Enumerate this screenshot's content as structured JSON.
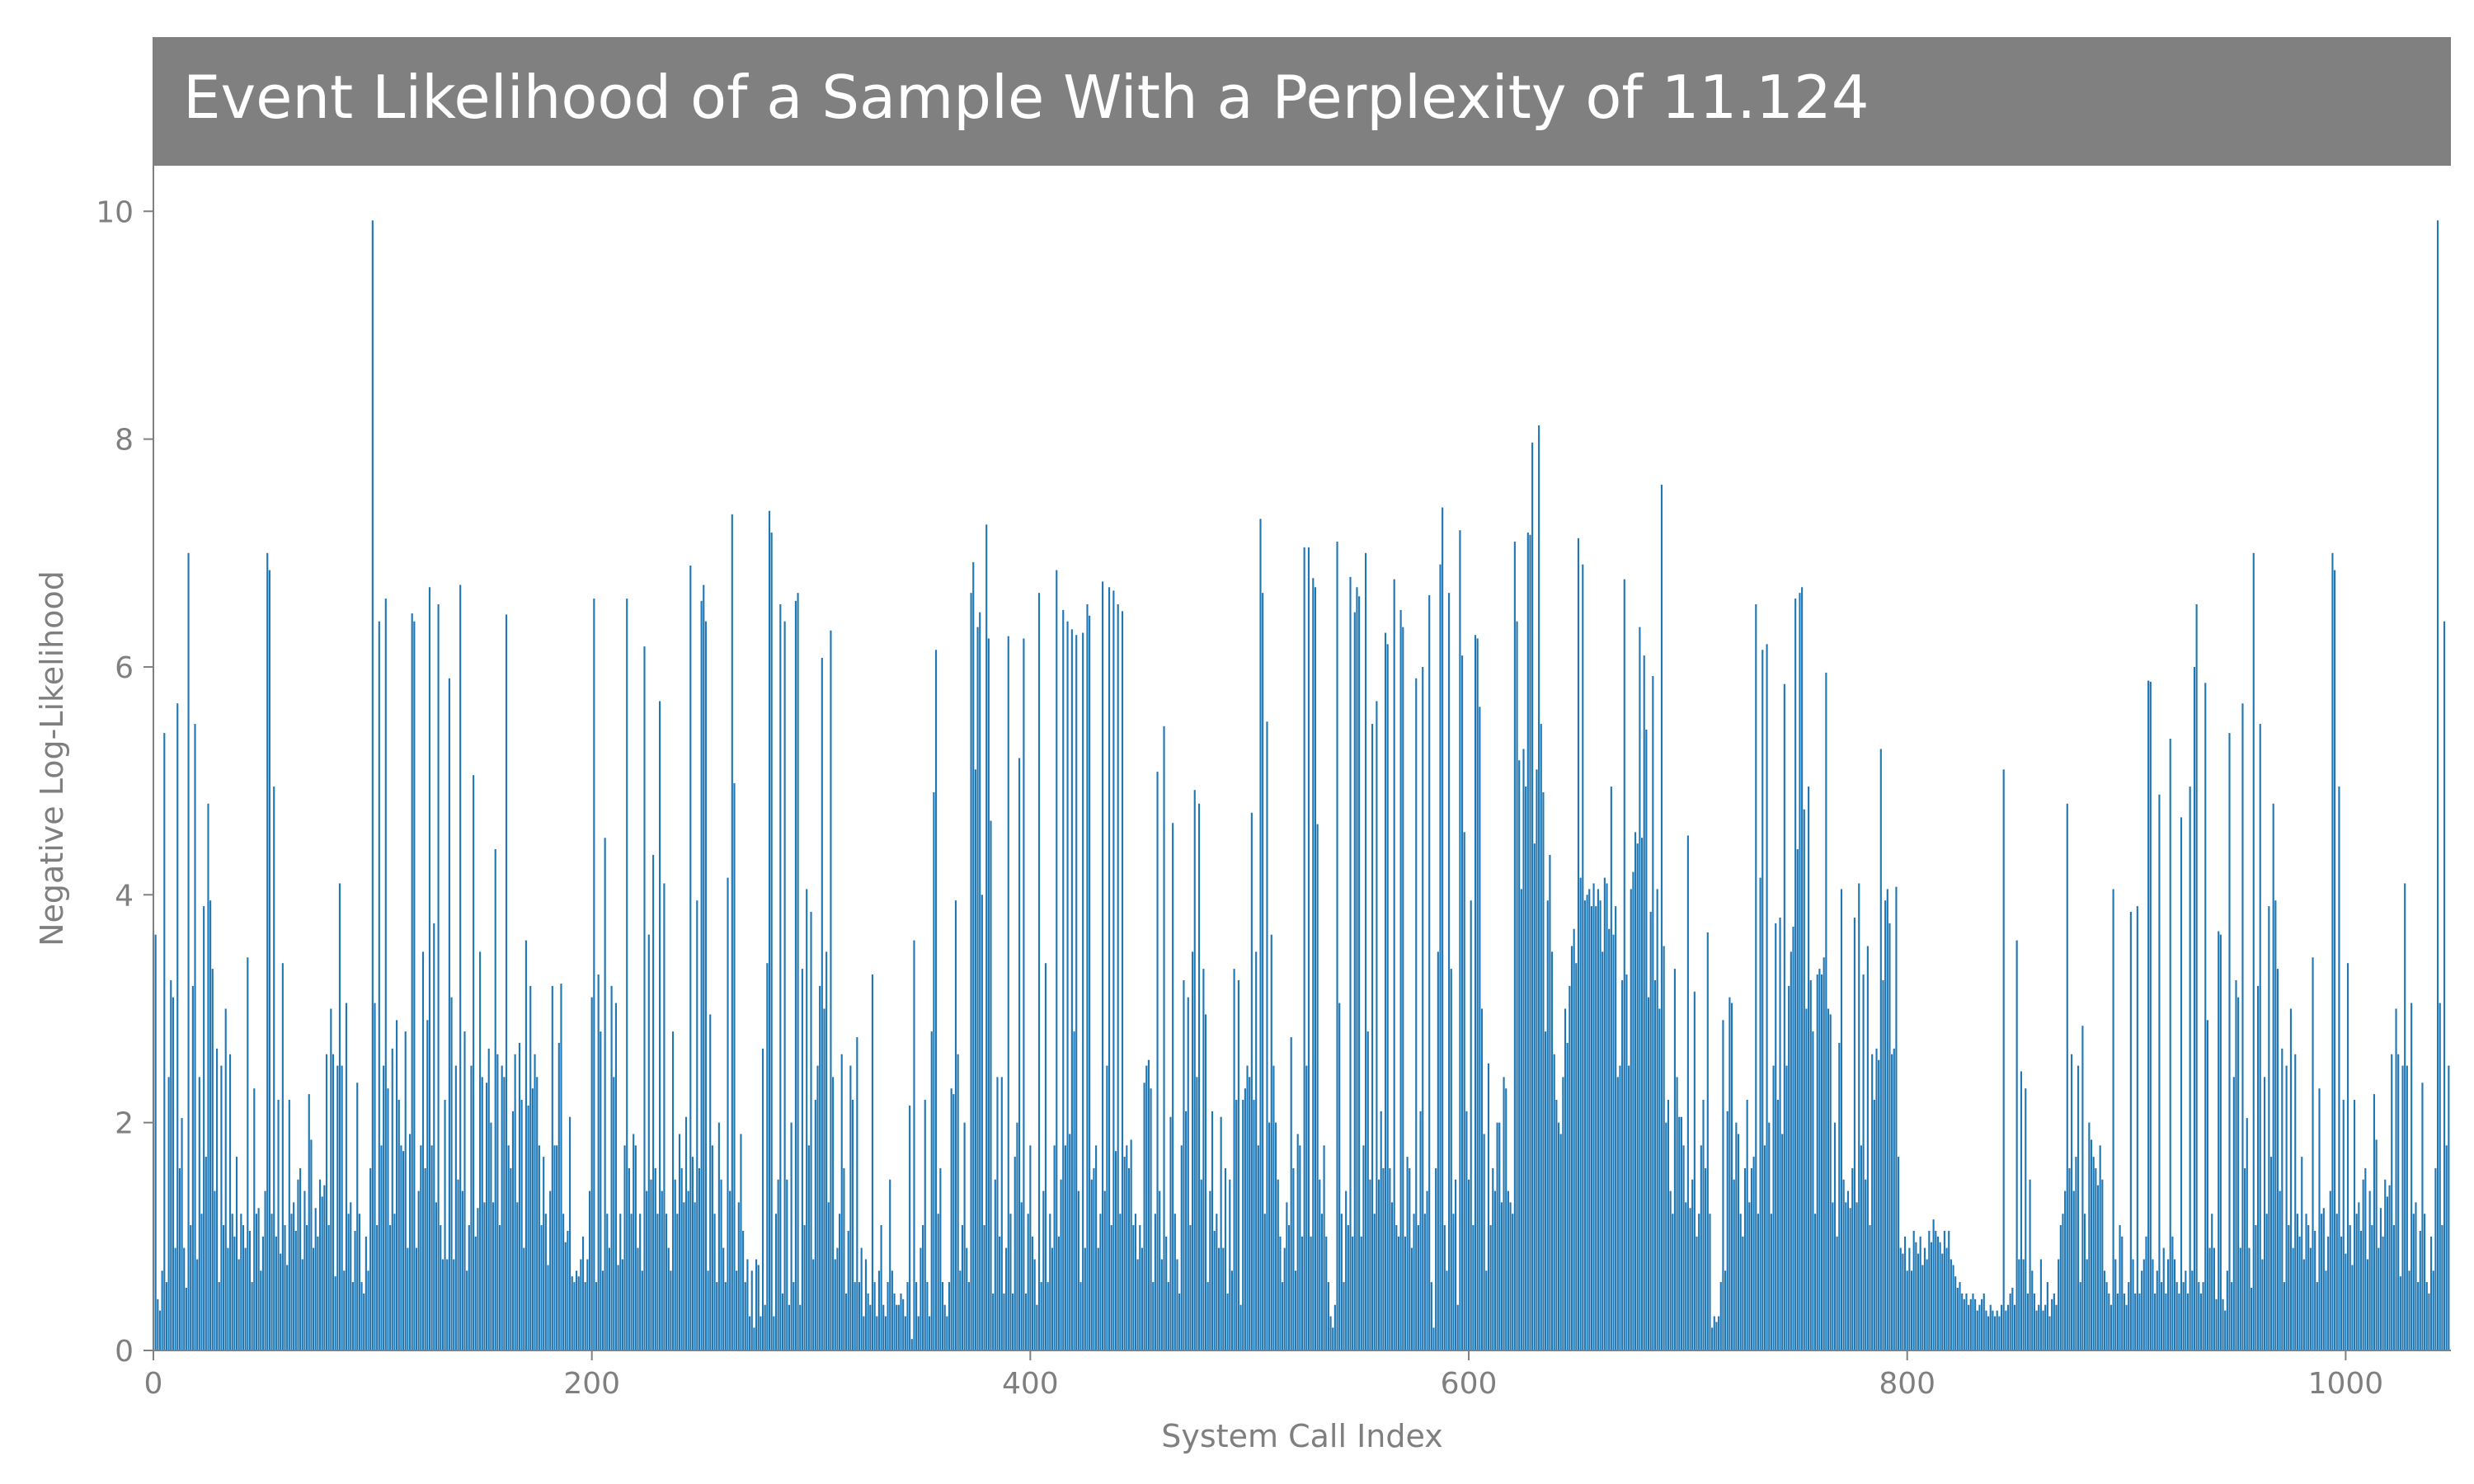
{
  "chart_data": {
    "type": "bar",
    "title": "Event Likelihood of a Sample With a Perplexity of 11.124",
    "xlabel": "System Call Index",
    "ylabel": "Negative Log-Likelihood",
    "xlim": [
      0,
      1048
    ],
    "ylim": [
      0,
      10.4
    ],
    "x_ticks": [
      "0",
      "200",
      "400",
      "600",
      "800",
      "1000"
    ],
    "y_ticks": [
      "0",
      "2",
      "4",
      "6",
      "8",
      "10"
    ],
    "grid": false,
    "legend": "none",
    "bar_color": "#1f77b4",
    "title_bg_color": "#808080",
    "axis_text_color": "#7f7f7f",
    "num_bars": 1048,
    "values": [
      3.68,
      3.65,
      0.45,
      0.35,
      0.7,
      5.42,
      0.6,
      2.4,
      3.25,
      3.1,
      0.9,
      5.68,
      1.6,
      2.04,
      0.9,
      0.55,
      7.0,
      1.1,
      3.2,
      5.5,
      0.8,
      2.4,
      1.2,
      3.9,
      1.7,
      4.8,
      3.95,
      3.35,
      1.4,
      2.65,
      0.6,
      2.5,
      1.1,
      3.0,
      0.9,
      2.6,
      1.2,
      1.0,
      1.7,
      0.8,
      1.2,
      1.1,
      0.9,
      3.45,
      1.05,
      0.6,
      2.3,
      1.2,
      1.25,
      0.7,
      1.0,
      1.4,
      7.0,
      6.85,
      1.2,
      4.95,
      1.0,
      2.2,
      0.85,
      3.4,
      1.1,
      0.75,
      2.2,
      1.2,
      1.3,
      1.05,
      1.5,
      1.6,
      0.8,
      1.4,
      1.1,
      2.25,
      1.85,
      0.9,
      1.25,
      1.0,
      1.5,
      1.35,
      1.45,
      2.6,
      1.1,
      3.0,
      2.6,
      0.65,
      2.5,
      4.1,
      2.5,
      0.7,
      3.05,
      1.2,
      1.3,
      0.6,
      1.05,
      2.35,
      1.2,
      0.6,
      0.5,
      1.0,
      0.7,
      1.6,
      9.92,
      3.05,
      1.1,
      6.4,
      1.8,
      2.5,
      6.6,
      2.3,
      1.1,
      2.65,
      1.2,
      2.9,
      2.2,
      1.8,
      1.75,
      2.8,
      0.9,
      1.9,
      6.47,
      6.4,
      0.9,
      1.4,
      1.8,
      3.5,
      1.6,
      2.9,
      6.7,
      1.8,
      3.75,
      1.3,
      6.55,
      1.1,
      0.8,
      2.2,
      0.8,
      5.9,
      3.1,
      0.8,
      2.5,
      1.5,
      6.72,
      1.4,
      2.8,
      0.7,
      1.1,
      2.5,
      5.05,
      1.0,
      1.25,
      3.5,
      2.4,
      1.3,
      2.35,
      2.65,
      2.0,
      1.3,
      4.4,
      2.6,
      1.1,
      2.5,
      2.4,
      6.46,
      1.8,
      1.6,
      2.1,
      2.6,
      1.3,
      2.7,
      2.2,
      0.9,
      3.6,
      2.15,
      3.2,
      2.3,
      2.6,
      2.4,
      1.8,
      1.1,
      1.7,
      1.2,
      0.75,
      1.4,
      3.2,
      1.8,
      1.8,
      2.7,
      3.22,
      1.2,
      0.95,
      1.05,
      2.05,
      0.65,
      0.6,
      0.7,
      0.65,
      0.8,
      1.0,
      0.6,
      0.8,
      1.4,
      3.1,
      6.6,
      0.6,
      3.3,
      2.8,
      0.7,
      4.5,
      1.2,
      0.9,
      3.2,
      2.4,
      3.05,
      0.75,
      1.2,
      0.8,
      1.8,
      6.6,
      1.6,
      1.2,
      1.9,
      1.8,
      0.9,
      1.2,
      0.7,
      6.18,
      1.4,
      3.65,
      1.5,
      4.35,
      1.6,
      1.2,
      5.7,
      1.4,
      4.1,
      1.2,
      0.9,
      0.7,
      2.8,
      1.5,
      1.2,
      1.9,
      1.6,
      1.3,
      2.05,
      1.4,
      6.89,
      1.7,
      1.3,
      3.95,
      1.6,
      6.58,
      6.72,
      6.4,
      0.7,
      2.95,
      1.8,
      1.2,
      0.6,
      2.0,
      1.5,
      0.9,
      0.6,
      4.15,
      1.4,
      7.34,
      4.98,
      0.7,
      1.3,
      1.9,
      1.05,
      0.6,
      0.8,
      0.3,
      0.7,
      0.2,
      0.8,
      0.75,
      0.3,
      2.65,
      0.4,
      3.4,
      7.37,
      7.18,
      0.3,
      1.2,
      1.5,
      6.55,
      0.5,
      6.4,
      1.5,
      0.4,
      2.0,
      0.6,
      6.58,
      6.65,
      0.4,
      3.35,
      1.1,
      4.05,
      1.8,
      3.85,
      0.8,
      2.2,
      2.5,
      3.2,
      6.08,
      3.0,
      3.5,
      1.3,
      6.32,
      2.4,
      0.8,
      0.9,
      1.2,
      2.6,
      1.6,
      0.5,
      1.05,
      2.5,
      2.2,
      0.6,
      2.75,
      0.6,
      0.9,
      0.3,
      0.8,
      0.5,
      0.4,
      3.3,
      0.6,
      0.3,
      0.7,
      1.1,
      0.4,
      0.3,
      0.6,
      1.5,
      0.7,
      0.5,
      0.4,
      0.4,
      0.5,
      0.45,
      0.3,
      0.6,
      2.15,
      0.1,
      3.6,
      0.6,
      0.3,
      0.9,
      1.1,
      2.2,
      0.6,
      0.3,
      2.8,
      4.9,
      6.15,
      1.2,
      1.6,
      0.6,
      0.4,
      0.3,
      0.6,
      2.3,
      2.25,
      3.95,
      2.6,
      0.7,
      1.1,
      2.0,
      0.9,
      0.6,
      6.65,
      6.92,
      5.1,
      6.35,
      6.48,
      4.0,
      1.1,
      7.25,
      6.25,
      4.65,
      0.5,
      1.5,
      2.4,
      1.0,
      2.4,
      0.5,
      0.9,
      6.27,
      1.2,
      0.5,
      1.7,
      2.0,
      5.2,
      1.3,
      6.25,
      0.5,
      1.2,
      1.8,
      1.0,
      0.8,
      0.4,
      6.65,
      0.6,
      1.4,
      3.4,
      0.6,
      1.2,
      0.9,
      1.8,
      6.85,
      1.0,
      1.5,
      6.5,
      1.8,
      6.4,
      1.9,
      6.33,
      2.8,
      6.28,
      1.4,
      0.6,
      6.3,
      0.9,
      6.55,
      6.45,
      1.5,
      1.6,
      1.8,
      0.9,
      1.2,
      6.75,
      1.4,
      2.5,
      6.7,
      1.1,
      6.67,
      1.75,
      6.55,
      1.2,
      6.49,
      1.7,
      1.8,
      1.6,
      1.85,
      1.1,
      1.2,
      0.8,
      1.1,
      0.9,
      2.35,
      2.5,
      2.55,
      2.3,
      0.6,
      1.2,
      5.08,
      1.4,
      0.8,
      5.48,
      1.0,
      0.6,
      2.05,
      4.63,
      1.2,
      0.8,
      0.5,
      1.8,
      3.25,
      2.1,
      3.1,
      1.1,
      3.5,
      4.92,
      2.4,
      4.8,
      1.5,
      3.35,
      2.95,
      0.6,
      1.4,
      2.1,
      1.05,
      1.2,
      0.9,
      2.05,
      0.9,
      1.6,
      0.5,
      1.5,
      0.7,
      3.35,
      2.2,
      3.25,
      0.4,
      2.2,
      2.3,
      2.5,
      2.4,
      4.72,
      2.2,
      3.5,
      1.8,
      7.3,
      6.65,
      1.2,
      5.52,
      2.0,
      3.65,
      2.5,
      2.0,
      1.5,
      1.0,
      0.6,
      0.9,
      1.3,
      1.1,
      2.75,
      1.6,
      0.7,
      1.9,
      1.8,
      1.0,
      7.05,
      2.5,
      7.05,
      1.0,
      6.78,
      6.7,
      4.62,
      1.5,
      1.2,
      1.8,
      1.0,
      0.6,
      0.3,
      0.2,
      0.4,
      7.1,
      3.05,
      1.2,
      0.6,
      1.4,
      1.1,
      6.79,
      1.0,
      6.48,
      6.7,
      6.62,
      1.0,
      1.8,
      7.0,
      2.8,
      1.5,
      5.5,
      1.2,
      5.7,
      1.5,
      2.1,
      1.6,
      6.3,
      6.2,
      1.6,
      1.3,
      6.77,
      1.1,
      1.0,
      6.5,
      6.35,
      1.0,
      1.7,
      1.6,
      0.9,
      1.2,
      5.9,
      1.1,
      2.1,
      6.0,
      1.2,
      1.4,
      6.63,
      0.6,
      0.2,
      1.6,
      3.5,
      6.9,
      7.4,
      1.1,
      0.7,
      6.65,
      3.35,
      1.2,
      1.5,
      0.4,
      7.2,
      6.1,
      4.55,
      2.1,
      1.5,
      3.95,
      1.1,
      6.28,
      6.25,
      5.65,
      3.0,
      1.9,
      0.7,
      2.52,
      1.1,
      1.6,
      1.4,
      2.0,
      2.0,
      1.3,
      2.4,
      2.3,
      1.4,
      1.3,
      1.2,
      7.1,
      6.4,
      5.18,
      4.05,
      5.28,
      4.95,
      7.18,
      7.16,
      7.97,
      4.45,
      5.1,
      8.12,
      5.5,
      4.9,
      2.8,
      3.95,
      4.35,
      3.5,
      2.6,
      2.2,
      2.0,
      1.9,
      2.4,
      3.0,
      2.7,
      3.2,
      3.55,
      3.7,
      3.4,
      7.13,
      4.15,
      6.9,
      3.95,
      4.0,
      4.05,
      3.9,
      4.1,
      3.9,
      4.05,
      3.95,
      3.5,
      4.15,
      4.1,
      3.7,
      4.95,
      3.65,
      3.9,
      2.4,
      2.5,
      3.25,
      6.77,
      3.3,
      2.5,
      4.05,
      4.2,
      4.55,
      4.45,
      6.35,
      4.5,
      6.1,
      5.45,
      3.1,
      3.85,
      5.92,
      3.25,
      4.05,
      3.0,
      7.6,
      3.55,
      2.0,
      2.2,
      1.4,
      1.2,
      3.35,
      2.4,
      2.05,
      2.05,
      1.8,
      1.3,
      4.52,
      1.25,
      1.5,
      3.15,
      1.0,
      1.2,
      1.8,
      2.2,
      1.6,
      3.67,
      1.2,
      0.2,
      0.3,
      0.25,
      0.3,
      0.6,
      2.9,
      0.7,
      2.1,
      3.1,
      3.05,
      1.5,
      2.0,
      1.9,
      1.2,
      1.0,
      1.6,
      2.2,
      1.3,
      1.6,
      1.7,
      6.55,
      1.2,
      4.15,
      6.15,
      1.8,
      6.2,
      2.0,
      1.2,
      2.5,
      3.75,
      2.2,
      3.8,
      1.9,
      5.85,
      2.5,
      3.2,
      3.5,
      3.72,
      6.6,
      4.4,
      6.65,
      6.7,
      4.75,
      3.0,
      4.95,
      3.25,
      2.8,
      1.2,
      3.3,
      3.35,
      3.3,
      3.45,
      5.95,
      3.0,
      2.95,
      1.3,
      2.0,
      1.0,
      2.7,
      4.05,
      1.5,
      1.3,
      1.4,
      1.25,
      1.6,
      3.8,
      1.3,
      4.1,
      1.8,
      3.3,
      1.5,
      3.55,
      1.1,
      2.6,
      2.2,
      2.65,
      2.55,
      5.28,
      3.25,
      3.95,
      4.05,
      3.75,
      2.6,
      2.65,
      4.07,
      1.7,
      0.9,
      0.85,
      1.0,
      0.7,
      0.9,
      0.7,
      1.05,
      0.95,
      0.85,
      1.0,
      0.75,
      0.9,
      0.8,
      1.05,
      0.95,
      1.15,
      1.05,
      1.0,
      0.95,
      0.85,
      1.05,
      0.9,
      1.05,
      0.8,
      0.75,
      0.65,
      0.55,
      0.6,
      0.5,
      0.45,
      0.5,
      0.4,
      0.45,
      0.5,
      0.45,
      0.35,
      0.4,
      0.45,
      0.5,
      0.35,
      0.3,
      0.4,
      0.35,
      0.3,
      0.35,
      0.3,
      0.4,
      5.1,
      0.35,
      0.4,
      0.5,
      0.55,
      0.4,
      3.6,
      0.8,
      2.45,
      0.8,
      2.3,
      0.5,
      1.5,
      0.7,
      0.5,
      0.35,
      0.4,
      0.8,
      0.35,
      0.4,
      0.6,
      0.3,
      0.45,
      0.5,
      0.4,
      0.8,
      1.1,
      1.2,
      1.4,
      4.8,
      1.6,
      2.6,
      1.4,
      1.7,
      2.5,
      0.6,
      2.85,
      1.2,
      0.8,
      2.0,
      1.85,
      1.7,
      1.6,
      1.45,
      1.8,
      1.5,
      0.7,
      0.6,
      0.5,
      0.4,
      4.05,
      0.8,
      0.5,
      1.1,
      1.0,
      0.5,
      0.4,
      0.6,
      3.85,
      0.8,
      0.5,
      3.9,
      0.5,
      0.7,
      0.8,
      1.0,
      5.88,
      5.87,
      0.8,
      0.5,
      0.7,
      4.88,
      0.6,
      0.9,
      0.5,
      0.8,
      5.37,
      1.0,
      0.8,
      0.6,
      0.5,
      4.68,
      0.6,
      0.7,
      0.5,
      4.95,
      0.7,
      6.0,
      6.55,
      0.6,
      0.5,
      0.6,
      5.86,
      2.9,
      0.9,
      1.2,
      0.9,
      0.45
    ]
  }
}
